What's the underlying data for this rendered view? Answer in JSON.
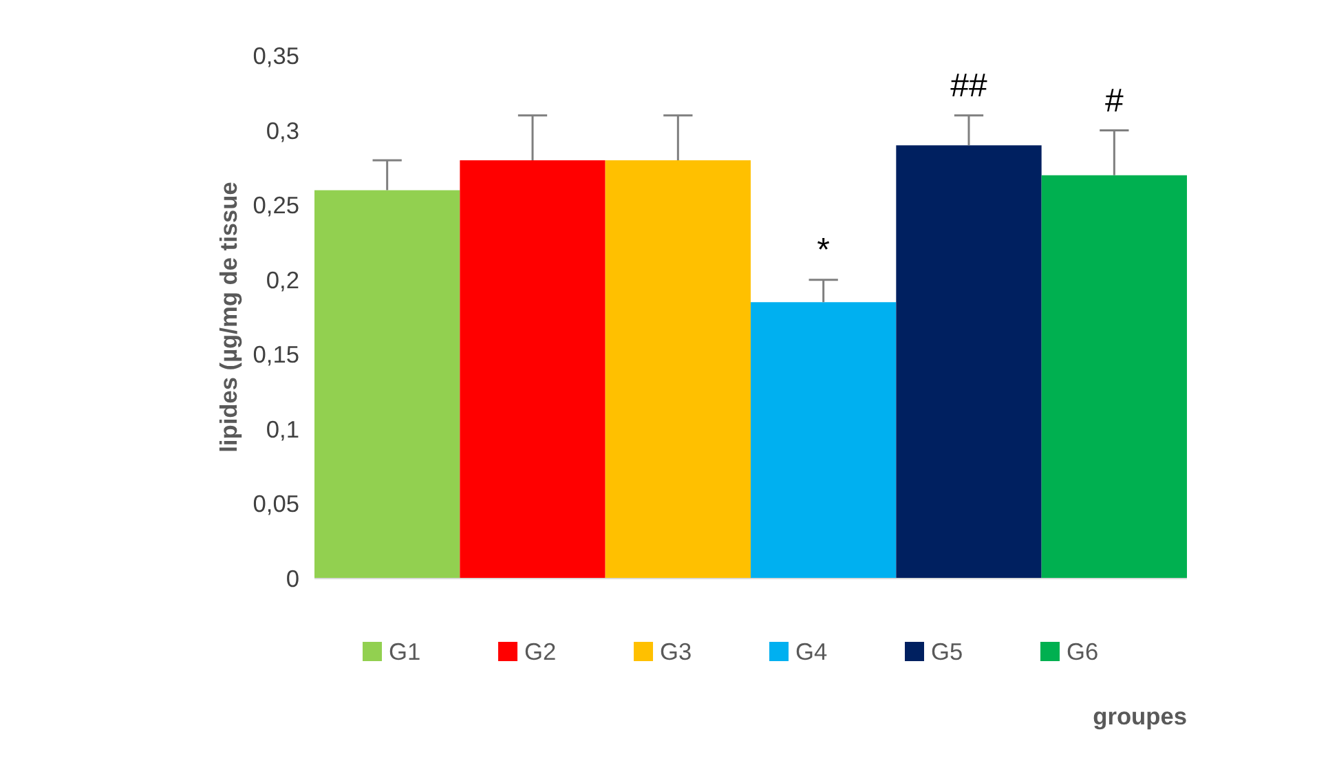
{
  "chart_data": {
    "type": "bar",
    "ylabel": "lipides (µg/mg de tissue",
    "xlabel": "groupes",
    "categories": [
      null
    ],
    "series": [
      {
        "name": "G1",
        "color": "#92d050",
        "values": [
          0.26
        ],
        "errors": [
          [
            0.26,
            0.28
          ]
        ]
      },
      {
        "name": "G2",
        "color": "#ff0000",
        "values": [
          0.28
        ],
        "errors": [
          [
            0.28,
            0.31
          ]
        ]
      },
      {
        "name": "G3",
        "color": "#ffc000",
        "values": [
          0.28
        ],
        "errors": [
          [
            0.28,
            0.31
          ]
        ]
      },
      {
        "name": "G4",
        "color": "#00b0f0",
        "values": [
          0.185
        ],
        "errors": [
          [
            0.185,
            0.2
          ]
        ]
      },
      {
        "name": "G5",
        "color": "#002060",
        "values": [
          0.29
        ],
        "errors": [
          [
            0.29,
            0.31
          ]
        ]
      },
      {
        "name": "G6",
        "color": "#00b050",
        "values": [
          0.27
        ],
        "errors": [
          [
            0.27,
            0.3
          ]
        ]
      }
    ],
    "annotations": [
      "*",
      "##",
      "#"
    ],
    "ylim": [
      0,
      0.35
    ],
    "yticks": [
      0,
      {
        "value": 0.05,
        "label": "0,05"
      },
      {
        "value": 0.1,
        "label": "0,1"
      },
      {
        "value": 0.15,
        "label": "0,15"
      },
      {
        "value": 0.2,
        "label": "0,2"
      },
      {
        "value": 0.25,
        "label": "0,25"
      },
      {
        "value": 0.3,
        "label": "0,3"
      },
      {
        "value": 0.35,
        "label": "0,35"
      }
    ],
    "tick_labels": "y",
    "grid": false,
    "legend": "bottom"
  }
}
